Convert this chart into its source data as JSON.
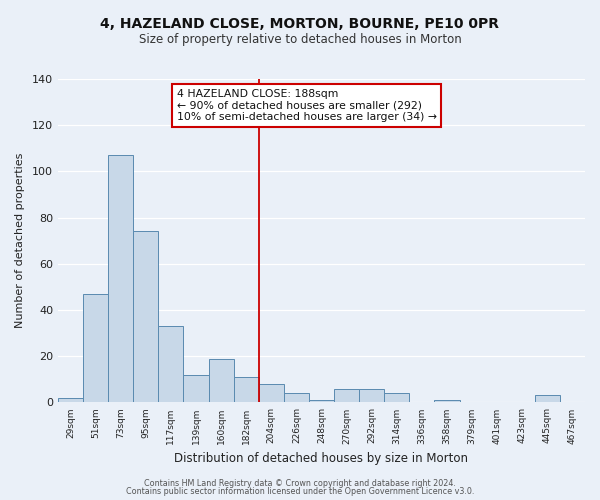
{
  "title": "4, HAZELAND CLOSE, MORTON, BOURNE, PE10 0PR",
  "subtitle": "Size of property relative to detached houses in Morton",
  "xlabel": "Distribution of detached houses by size in Morton",
  "ylabel": "Number of detached properties",
  "bar_labels": [
    "29sqm",
    "51sqm",
    "73sqm",
    "95sqm",
    "117sqm",
    "139sqm",
    "160sqm",
    "182sqm",
    "204sqm",
    "226sqm",
    "248sqm",
    "270sqm",
    "292sqm",
    "314sqm",
    "336sqm",
    "358sqm",
    "379sqm",
    "401sqm",
    "423sqm",
    "445sqm",
    "467sqm"
  ],
  "bar_values": [
    2,
    47,
    107,
    74,
    33,
    12,
    19,
    11,
    8,
    4,
    1,
    6,
    6,
    4,
    0,
    1,
    0,
    0,
    0,
    3,
    0
  ],
  "bar_color": "#c8d8e8",
  "bar_edgecolor": "#5a8ab0",
  "vline_index": 7,
  "vline_color": "#cc0000",
  "ylim": [
    0,
    140
  ],
  "yticks": [
    0,
    20,
    40,
    60,
    80,
    100,
    120,
    140
  ],
  "annotation_title": "4 HAZELAND CLOSE: 188sqm",
  "annotation_line1": "← 90% of detached houses are smaller (292)",
  "annotation_line2": "10% of semi-detached houses are larger (34) →",
  "annotation_box_color": "#ffffff",
  "annotation_box_edgecolor": "#cc0000",
  "bg_color": "#eaf0f8",
  "grid_color": "#ffffff",
  "footer1": "Contains HM Land Registry data © Crown copyright and database right 2024.",
  "footer2": "Contains public sector information licensed under the Open Government Licence v3.0."
}
